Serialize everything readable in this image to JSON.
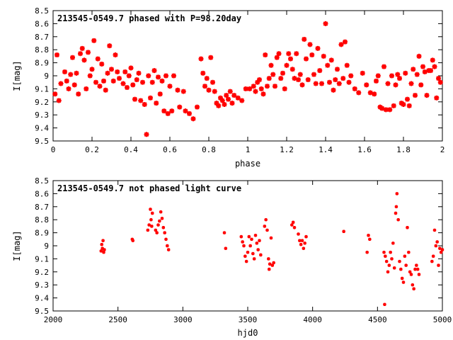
{
  "chart_data": [
    {
      "type": "scatter",
      "title": "213545-0549.7 phased with P=98.20day",
      "xlabel": "phase",
      "ylabel": "I[mag]",
      "xlim": [
        0,
        2
      ],
      "ylim": [
        8.5,
        9.5
      ],
      "y_inverted": true,
      "x_ticks": [
        "0",
        "0.2",
        "0.4",
        "0.6",
        "0.8",
        "1",
        "1.2",
        "1.4",
        "1.6",
        "1.8",
        "2"
      ],
      "y_ticks": [
        "8.5",
        "8.6",
        "8.7",
        "8.8",
        "8.9",
        "9",
        "9.1",
        "9.2",
        "9.3",
        "9.4",
        "9.5"
      ],
      "marker": "large",
      "color": "#ff0000",
      "grid": false,
      "points": [
        [
          0.01,
          9.14
        ],
        [
          0.02,
          8.84
        ],
        [
          0.03,
          9.19
        ],
        [
          0.04,
          9.06
        ],
        [
          0.06,
          8.97
        ],
        [
          0.07,
          9.04
        ],
        [
          0.08,
          9.1
        ],
        [
          0.09,
          8.99
        ],
        [
          0.1,
          8.86
        ],
        [
          0.11,
          9.07
        ],
        [
          0.12,
          8.98
        ],
        [
          0.13,
          9.14
        ],
        [
          0.14,
          8.83
        ],
        [
          0.15,
          8.79
        ],
        [
          0.16,
          8.88
        ],
        [
          0.17,
          9.1
        ],
        [
          0.18,
          8.82
        ],
        [
          0.19,
          9.0
        ],
        [
          0.2,
          8.95
        ],
        [
          0.21,
          8.73
        ],
        [
          0.22,
          9.05
        ],
        [
          0.23,
          8.87
        ],
        [
          0.24,
          9.08
        ],
        [
          0.25,
          8.91
        ],
        [
          0.26,
          9.04
        ],
        [
          0.27,
          9.11
        ],
        [
          0.28,
          8.98
        ],
        [
          0.29,
          8.77
        ],
        [
          0.3,
          8.95
        ],
        [
          0.31,
          9.04
        ],
        [
          0.32,
          8.84
        ],
        [
          0.33,
          8.97
        ],
        [
          0.34,
          9.02
        ],
        [
          0.36,
          9.06
        ],
        [
          0.37,
          8.97
        ],
        [
          0.38,
          9.09
        ],
        [
          0.39,
          9.0
        ],
        [
          0.4,
          8.94
        ],
        [
          0.41,
          9.07
        ],
        [
          0.42,
          9.18
        ],
        [
          0.43,
          9.03
        ],
        [
          0.44,
          8.98
        ],
        [
          0.45,
          9.19
        ],
        [
          0.46,
          9.05
        ],
        [
          0.47,
          9.22
        ],
        [
          0.48,
          9.45
        ],
        [
          0.49,
          9.0
        ],
        [
          0.5,
          9.17
        ],
        [
          0.51,
          9.05
        ],
        [
          0.52,
          8.96
        ],
        [
          0.53,
          9.21
        ],
        [
          0.54,
          9.01
        ],
        [
          0.55,
          9.14
        ],
        [
          0.56,
          9.04
        ],
        [
          0.57,
          9.27
        ],
        [
          0.58,
          9.0
        ],
        [
          0.59,
          9.29
        ],
        [
          0.6,
          9.08
        ],
        [
          0.61,
          9.27
        ],
        [
          0.62,
          9.0
        ],
        [
          0.64,
          9.11
        ],
        [
          0.65,
          9.24
        ],
        [
          0.67,
          9.12
        ],
        [
          0.68,
          9.27
        ],
        [
          0.7,
          9.29
        ],
        [
          0.72,
          9.33
        ],
        [
          0.74,
          9.24
        ],
        [
          0.76,
          8.87
        ],
        [
          0.77,
          8.98
        ],
        [
          0.78,
          9.08
        ],
        [
          0.79,
          9.02
        ],
        [
          0.8,
          9.11
        ],
        [
          0.81,
          8.86
        ],
        [
          0.82,
          9.05
        ],
        [
          0.83,
          9.12
        ],
        [
          0.84,
          9.21
        ],
        [
          0.85,
          9.23
        ],
        [
          0.86,
          9.17
        ],
        [
          0.87,
          9.19
        ],
        [
          0.88,
          9.22
        ],
        [
          0.89,
          9.15
        ],
        [
          0.9,
          9.18
        ],
        [
          0.91,
          9.12
        ],
        [
          0.92,
          9.21
        ],
        [
          0.93,
          9.15
        ],
        [
          0.95,
          9.17
        ],
        [
          0.97,
          9.19
        ],
        [
          0.99,
          9.1
        ],
        [
          1.01,
          9.1
        ],
        [
          1.03,
          9.08
        ],
        [
          1.04,
          9.12
        ],
        [
          1.05,
          9.05
        ],
        [
          1.06,
          9.03
        ],
        [
          1.07,
          9.1
        ],
        [
          1.08,
          9.14
        ],
        [
          1.09,
          8.84
        ],
        [
          1.1,
          9.08
        ],
        [
          1.11,
          9.02
        ],
        [
          1.12,
          8.92
        ],
        [
          1.13,
          8.99
        ],
        [
          1.14,
          9.08
        ],
        [
          1.15,
          8.86
        ],
        [
          1.16,
          8.83
        ],
        [
          1.17,
          9.02
        ],
        [
          1.18,
          8.98
        ],
        [
          1.19,
          9.1
        ],
        [
          1.2,
          8.92
        ],
        [
          1.21,
          8.83
        ],
        [
          1.22,
          8.87
        ],
        [
          1.23,
          8.95
        ],
        [
          1.24,
          9.02
        ],
        [
          1.25,
          8.83
        ],
        [
          1.26,
          9.03
        ],
        [
          1.27,
          8.99
        ],
        [
          1.28,
          9.07
        ],
        [
          1.29,
          8.72
        ],
        [
          1.3,
          8.87
        ],
        [
          1.31,
          9.03
        ],
        [
          1.32,
          8.76
        ],
        [
          1.33,
          8.84
        ],
        [
          1.34,
          8.99
        ],
        [
          1.35,
          9.06
        ],
        [
          1.36,
          8.79
        ],
        [
          1.37,
          8.96
        ],
        [
          1.38,
          9.06
        ],
        [
          1.39,
          8.85
        ],
        [
          1.4,
          8.6
        ],
        [
          1.41,
          8.92
        ],
        [
          1.42,
          9.05
        ],
        [
          1.43,
          8.88
        ],
        [
          1.44,
          9.11
        ],
        [
          1.45,
          9.03
        ],
        [
          1.46,
          8.95
        ],
        [
          1.47,
          9.06
        ],
        [
          1.48,
          8.76
        ],
        [
          1.49,
          9.02
        ],
        [
          1.5,
          8.74
        ],
        [
          1.51,
          8.92
        ],
        [
          1.52,
          9.05
        ],
        [
          1.53,
          9.0
        ],
        [
          1.55,
          9.1
        ],
        [
          1.57,
          9.13
        ],
        [
          1.59,
          8.98
        ],
        [
          1.61,
          9.07
        ],
        [
          1.63,
          9.13
        ],
        [
          1.65,
          9.14
        ],
        [
          1.66,
          9.04
        ],
        [
          1.67,
          9.0
        ],
        [
          1.68,
          9.24
        ],
        [
          1.69,
          9.25
        ],
        [
          1.7,
          8.93
        ],
        [
          1.71,
          9.26
        ],
        [
          1.72,
          9.06
        ],
        [
          1.73,
          9.26
        ],
        [
          1.74,
          9.0
        ],
        [
          1.75,
          9.23
        ],
        [
          1.76,
          9.07
        ],
        [
          1.77,
          8.99
        ],
        [
          1.78,
          9.02
        ],
        [
          1.79,
          9.21
        ],
        [
          1.8,
          9.22
        ],
        [
          1.81,
          8.98
        ],
        [
          1.82,
          9.18
        ],
        [
          1.83,
          9.23
        ],
        [
          1.84,
          9.06
        ],
        [
          1.85,
          8.95
        ],
        [
          1.86,
          9.15
        ],
        [
          1.87,
          8.99
        ],
        [
          1.88,
          8.85
        ],
        [
          1.89,
          9.07
        ],
        [
          1.9,
          8.93
        ],
        [
          1.91,
          8.97
        ],
        [
          1.92,
          9.15
        ],
        [
          1.93,
          8.96
        ],
        [
          1.94,
          8.96
        ],
        [
          1.95,
          8.88
        ],
        [
          1.96,
          8.93
        ],
        [
          1.97,
          9.17
        ],
        [
          1.98,
          9.02
        ],
        [
          1.99,
          9.05
        ]
      ]
    },
    {
      "type": "scatter",
      "title": "213545-0549.7 not phased light curve",
      "xlabel": "hjd0",
      "ylabel": "I[mag]",
      "xlim": [
        2000,
        5000
      ],
      "ylim": [
        8.5,
        9.5
      ],
      "y_inverted": true,
      "x_ticks": [
        "2000",
        "2500",
        "3000",
        "3500",
        "4000",
        "4500",
        "5000"
      ],
      "y_ticks": [
        "8.5",
        "8.6",
        "8.7",
        "8.8",
        "8.9",
        "9",
        "9.1",
        "9.2",
        "9.3",
        "9.4",
        "9.5"
      ],
      "marker": "small",
      "color": "#ff0000",
      "grid": false,
      "points": [
        [
          2370,
          9.04
        ],
        [
          2375,
          8.99
        ],
        [
          2380,
          9.02
        ],
        [
          2385,
          8.96
        ],
        [
          2390,
          9.05
        ],
        [
          2395,
          9.03
        ],
        [
          2610,
          8.95
        ],
        [
          2615,
          8.96
        ],
        [
          2730,
          8.88
        ],
        [
          2740,
          8.84
        ],
        [
          2750,
          8.72
        ],
        [
          2755,
          8.8
        ],
        [
          2760,
          8.85
        ],
        [
          2765,
          8.75
        ],
        [
          2790,
          8.88
        ],
        [
          2800,
          8.9
        ],
        [
          2810,
          8.84
        ],
        [
          2820,
          8.81
        ],
        [
          2830,
          8.74
        ],
        [
          2840,
          8.79
        ],
        [
          2850,
          8.86
        ],
        [
          2860,
          8.9
        ],
        [
          2870,
          8.95
        ],
        [
          2880,
          9.0
        ],
        [
          2890,
          9.03
        ],
        [
          3320,
          8.9
        ],
        [
          3330,
          9.02
        ],
        [
          3450,
          8.93
        ],
        [
          3460,
          8.97
        ],
        [
          3470,
          9.0
        ],
        [
          3480,
          9.08
        ],
        [
          3490,
          9.12
        ],
        [
          3500,
          9.05
        ],
        [
          3510,
          8.93
        ],
        [
          3520,
          9.0
        ],
        [
          3530,
          8.95
        ],
        [
          3540,
          9.06
        ],
        [
          3550,
          9.1
        ],
        [
          3560,
          8.92
        ],
        [
          3570,
          8.98
        ],
        [
          3580,
          9.03
        ],
        [
          3590,
          8.96
        ],
        [
          3600,
          9.07
        ],
        [
          3630,
          8.85
        ],
        [
          3640,
          8.8
        ],
        [
          3650,
          8.88
        ],
        [
          3660,
          9.1
        ],
        [
          3665,
          9.18
        ],
        [
          3670,
          9.14
        ],
        [
          3680,
          8.94
        ],
        [
          3690,
          9.15
        ],
        [
          3700,
          9.13
        ],
        [
          3840,
          8.84
        ],
        [
          3850,
          8.82
        ],
        [
          3860,
          8.86
        ],
        [
          3890,
          8.91
        ],
        [
          3900,
          8.96
        ],
        [
          3910,
          8.99
        ],
        [
          3920,
          8.96
        ],
        [
          3930,
          9.02
        ],
        [
          3940,
          8.98
        ],
        [
          3950,
          8.93
        ],
        [
          4240,
          8.89
        ],
        [
          4420,
          9.05
        ],
        [
          4430,
          8.92
        ],
        [
          4440,
          8.95
        ],
        [
          4550,
          9.05
        ],
        [
          4555,
          9.45
        ],
        [
          4560,
          9.08
        ],
        [
          4570,
          9.12
        ],
        [
          4580,
          9.2
        ],
        [
          4590,
          9.15
        ],
        [
          4600,
          9.05
        ],
        [
          4610,
          9.1
        ],
        [
          4620,
          8.98
        ],
        [
          4630,
          9.17
        ],
        [
          4640,
          8.75
        ],
        [
          4645,
          8.7
        ],
        [
          4650,
          8.6
        ],
        [
          4660,
          8.8
        ],
        [
          4670,
          9.12
        ],
        [
          4680,
          9.18
        ],
        [
          4690,
          9.25
        ],
        [
          4700,
          9.28
        ],
        [
          4710,
          9.08
        ],
        [
          4720,
          9.15
        ],
        [
          4730,
          8.86
        ],
        [
          4740,
          9.05
        ],
        [
          4750,
          9.2
        ],
        [
          4760,
          9.22
        ],
        [
          4770,
          9.3
        ],
        [
          4780,
          9.33
        ],
        [
          4790,
          9.18
        ],
        [
          4800,
          9.15
        ],
        [
          4810,
          9.18
        ],
        [
          4820,
          9.22
        ],
        [
          4920,
          9.12
        ],
        [
          4930,
          9.08
        ],
        [
          4940,
          8.88
        ],
        [
          4950,
          9.0
        ],
        [
          4960,
          8.97
        ],
        [
          4970,
          9.15
        ],
        [
          4980,
          9.02
        ],
        [
          4990,
          9.05
        ],
        [
          5000,
          9.03
        ]
      ]
    }
  ]
}
